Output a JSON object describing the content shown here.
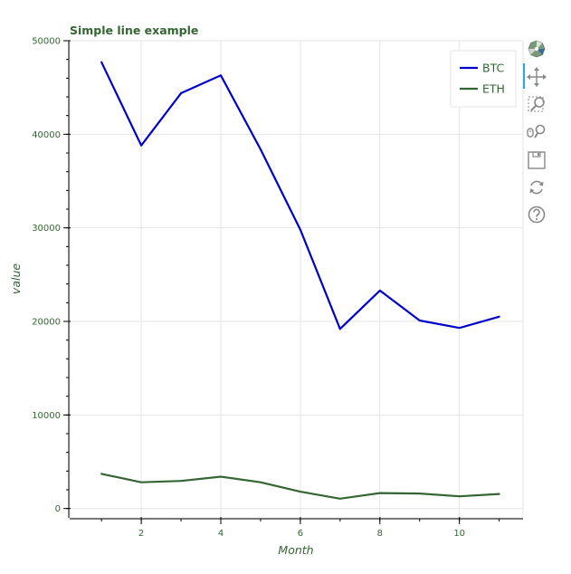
{
  "chart_data": {
    "type": "line",
    "title": "Simple line example",
    "xlabel": "Month",
    "ylabel": "value",
    "xlim": [
      0.2,
      11.6
    ],
    "ylim": [
      -1000,
      50000
    ],
    "x_ticks": [
      2,
      4,
      6,
      8,
      10
    ],
    "x_tick_labels": [
      "2",
      "4",
      "6",
      "8",
      "10"
    ],
    "x_minor_ticks": [
      1,
      2,
      3,
      4,
      5,
      6,
      7,
      8,
      9,
      10,
      11
    ],
    "y_ticks": [
      0,
      10000,
      20000,
      30000,
      40000,
      50000
    ],
    "y_tick_labels": [
      "0",
      "10000",
      "20000",
      "30000",
      "40000",
      "50000"
    ],
    "grid": true,
    "legend_position": "top-right",
    "series": [
      {
        "name": "BTC",
        "color": "#0000cc",
        "x": [
          1,
          2,
          3,
          4,
          5,
          6,
          7,
          8,
          9,
          10,
          11
        ],
        "values": [
          47700,
          38800,
          44400,
          46300,
          38400,
          29800,
          19200,
          23300,
          20100,
          19300,
          20500
        ]
      },
      {
        "name": "ETH",
        "color": "#336633",
        "x": [
          1,
          2,
          3,
          4,
          5,
          6,
          7,
          8,
          9,
          10,
          11
        ],
        "values": [
          3700,
          2800,
          2950,
          3400,
          2800,
          1800,
          1050,
          1650,
          1600,
          1300,
          1550
        ]
      }
    ]
  },
  "colors": {
    "title": "#336633",
    "axis_text": "#336633",
    "axis_line": "#000000",
    "grid": "#e6e6e6",
    "frame": "#e6e6e6",
    "toolbar_icon": "#888888",
    "toolbar_active": "#26aae1"
  },
  "toolbar": {
    "tools": [
      {
        "name": "bokeh-logo-icon"
      },
      {
        "name": "pan-tool-icon"
      },
      {
        "name": "box-zoom-tool-icon"
      },
      {
        "name": "wheel-zoom-tool-icon"
      },
      {
        "name": "save-tool-icon"
      },
      {
        "name": "reset-tool-icon"
      },
      {
        "name": "help-tool-icon"
      }
    ]
  }
}
